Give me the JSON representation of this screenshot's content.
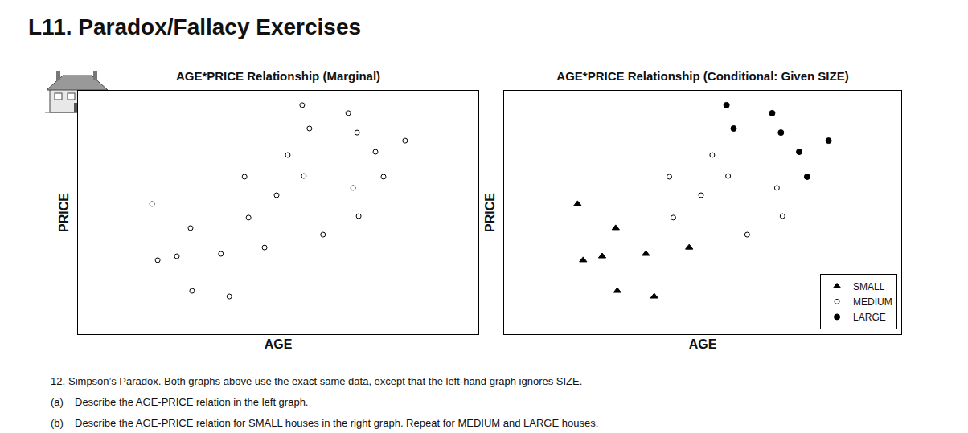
{
  "heading": "L11. Paradox/Fallacy Exercises",
  "chart_data": [
    {
      "type": "scatter",
      "title": "AGE*PRICE Relationship (Marginal)",
      "x_label": "AGE",
      "y_label": "PRICE",
      "xlim": [
        0,
        100
      ],
      "ylim": [
        0,
        100
      ],
      "xticks": [],
      "yticks": [],
      "tick_labels": false,
      "grid": false,
      "series": [
        {
          "marker": "circle-open",
          "color": "#000000",
          "x": [
            18.5,
            19.9,
            24.7,
            28.1,
            28.5,
            35.7,
            37.8,
            41.6,
            42.6,
            46.6,
            49.6,
            52.4,
            56.0,
            56.4,
            57.8,
            61.2,
            67.5,
            68.7,
            69.7,
            70.1,
            74.3,
            76.3,
            81.7
          ],
          "values": [
            53.5,
            30.4,
            32.0,
            43.6,
            17.8,
            33.0,
            15.5,
            64.7,
            47.9,
            35.6,
            57.1,
            73.6,
            94.1,
            65.0,
            84.5,
            40.9,
            90.8,
            60.1,
            82.8,
            48.5,
            74.9,
            64.7,
            79.5
          ]
        }
      ]
    },
    {
      "type": "scatter",
      "title": "AGE*PRICE Relationship (Conditional: Given SIZE)",
      "x_label": "AGE",
      "y_label": "PRICE",
      "xlim": [
        0,
        100
      ],
      "ylim": [
        0,
        100
      ],
      "xticks": [],
      "yticks": [],
      "tick_labels": false,
      "grid": false,
      "legend": "lower right",
      "series": [
        {
          "name": "SMALL",
          "marker": "triangle-up",
          "color": "#000000",
          "x": [
            18.5,
            19.9,
            24.7,
            28.1,
            28.5,
            35.7,
            37.8,
            46.6
          ],
          "values": [
            53.5,
            30.4,
            32.0,
            43.6,
            17.8,
            33.0,
            15.5,
            35.6
          ]
        },
        {
          "name": "MEDIUM",
          "marker": "circle-open",
          "color": "#000000",
          "x": [
            41.6,
            42.6,
            49.6,
            52.4,
            56.4,
            61.2,
            68.7,
            70.1
          ],
          "values": [
            64.7,
            47.9,
            57.1,
            73.6,
            65.0,
            40.9,
            60.1,
            48.5
          ]
        },
        {
          "name": "LARGE",
          "marker": "circle",
          "color": "#000000",
          "x": [
            56.0,
            57.8,
            67.5,
            69.7,
            74.3,
            76.3,
            81.7
          ],
          "values": [
            94.1,
            84.5,
            90.8,
            82.8,
            74.9,
            64.7,
            79.5
          ]
        }
      ]
    }
  ],
  "questions": {
    "number": "12.",
    "text": "Simpson’s Paradox.  Both graphs above use the exact same data, except that the left-hand graph ignores SIZE.",
    "parts": [
      {
        "label": "(a)",
        "text": "Describe the AGE-PRICE relation in the left graph."
      },
      {
        "label": "(b)",
        "text": "Describe the AGE-PRICE relation for SMALL houses in the right graph.  Repeat for MEDIUM and LARGE houses."
      }
    ]
  }
}
